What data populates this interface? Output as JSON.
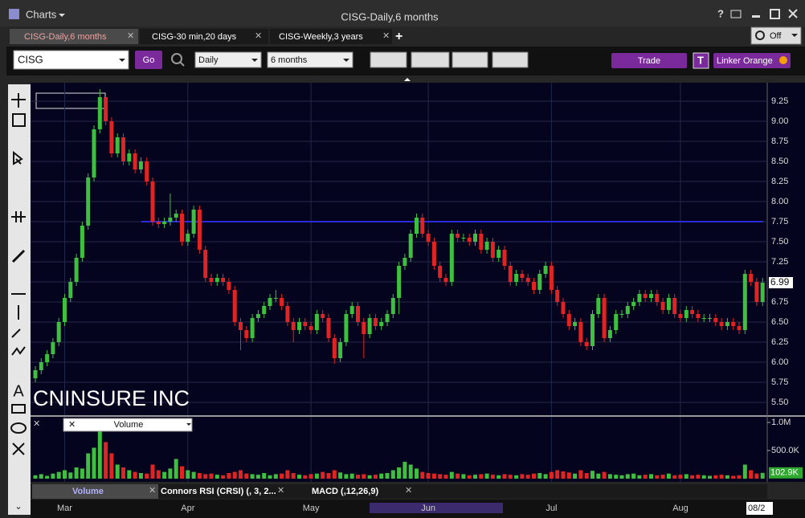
{
  "window": {
    "app_menu": "Charts",
    "title": "CISG-Daily,6 months",
    "tabs": [
      "CISG-Daily,6 months",
      "CISG-30 min,20 days",
      "CISG-Weekly,3 years"
    ],
    "link_state": "Off",
    "symbol": "CISG",
    "go": "Go",
    "period": "Daily",
    "range": "6 months",
    "trade": "Trade",
    "t_button": "T",
    "linker": "Linker Orange",
    "study_tabs": [
      "Volume",
      "Connors RSI (CRSI) (, 3, 2...",
      "MACD (,12,26,9)"
    ],
    "date_box": "08/2"
  },
  "chart_data": {
    "type": "candlestick",
    "annotation": "CNINSURE INC",
    "categories": [
      null,
      null,
      null,
      null,
      null,
      "Mar",
      null,
      null,
      null,
      null,
      null,
      null,
      null,
      null,
      null,
      null,
      null,
      null,
      null,
      null,
      null,
      null,
      null,
      null,
      null,
      null,
      "Apr",
      null,
      null,
      null,
      null,
      null,
      null,
      null,
      null,
      null,
      null,
      null,
      null,
      null,
      null,
      null,
      null,
      null,
      null,
      null,
      null,
      "May",
      null,
      null,
      null,
      null,
      null,
      null,
      null,
      null,
      null,
      null,
      null,
      null,
      null,
      null,
      null,
      null,
      null,
      null,
      null,
      "Jun",
      null,
      null,
      null,
      null,
      null,
      null,
      null,
      null,
      null,
      null,
      null,
      null,
      null,
      null,
      null,
      null,
      null,
      null,
      null,
      null,
      "Jul",
      null,
      null,
      null,
      null,
      null,
      null,
      null,
      null,
      null,
      null,
      null,
      null,
      null,
      null,
      null,
      null,
      null,
      null,
      null,
      null,
      null,
      "Aug",
      null,
      null,
      null,
      null,
      null,
      null,
      null,
      null,
      null,
      null,
      null,
      null,
      null,
      null
    ],
    "open": [
      5.8,
      5.9,
      6.0,
      6.1,
      6.25,
      6.5,
      6.8,
      7.0,
      7.3,
      7.7,
      8.3,
      8.9,
      9.3,
      9.0,
      8.6,
      8.8,
      8.5,
      8.6,
      8.4,
      8.5,
      8.25,
      7.75,
      7.72,
      7.75,
      7.8,
      7.85,
      7.5,
      7.6,
      7.9,
      7.4,
      7.05,
      7.0,
      7.05,
      7.0,
      6.9,
      6.5,
      6.4,
      6.3,
      6.55,
      6.6,
      6.7,
      6.8,
      6.8,
      6.7,
      6.5,
      6.4,
      6.5,
      6.45,
      6.4,
      6.6,
      6.55,
      6.3,
      6.05,
      6.25,
      6.6,
      6.7,
      6.5,
      6.35,
      6.55,
      6.45,
      6.5,
      6.6,
      6.8,
      7.2,
      7.3,
      7.6,
      7.8,
      7.6,
      7.5,
      7.2,
      7.05,
      7.0,
      7.6,
      7.55,
      7.55,
      7.5,
      7.6,
      7.4,
      7.5,
      7.3,
      7.4,
      7.2,
      7.0,
      7.1,
      7.05,
      7.0,
      6.9,
      7.1,
      7.2,
      6.9,
      6.75,
      6.6,
      6.45,
      6.5,
      6.25,
      6.2,
      6.6,
      6.8,
      6.3,
      6.4,
      6.6,
      6.6,
      6.7,
      6.75,
      6.85,
      6.8,
      6.85,
      6.75,
      6.65,
      6.8,
      6.6,
      6.55,
      6.65,
      6.6,
      6.55,
      6.55,
      6.55,
      6.5,
      6.45,
      6.5,
      6.45,
      6.4,
      7.1,
      7.0,
      6.75
    ],
    "high": [
      5.95,
      6.05,
      6.15,
      6.3,
      6.55,
      6.85,
      7.05,
      7.35,
      7.75,
      8.35,
      8.95,
      9.4,
      9.35,
      9.05,
      8.85,
      8.85,
      8.65,
      8.65,
      8.55,
      8.55,
      8.3,
      7.8,
      7.8,
      8.1,
      7.9,
      7.9,
      7.65,
      7.95,
      7.95,
      7.45,
      7.1,
      7.1,
      7.1,
      7.05,
      6.95,
      6.55,
      6.45,
      6.6,
      6.65,
      6.75,
      6.85,
      6.9,
      6.85,
      6.75,
      6.55,
      6.55,
      6.55,
      6.5,
      6.65,
      6.65,
      6.6,
      6.35,
      6.3,
      6.65,
      6.75,
      6.75,
      6.55,
      6.6,
      6.6,
      6.55,
      6.65,
      6.85,
      7.25,
      7.35,
      7.65,
      7.85,
      7.85,
      7.65,
      7.55,
      7.25,
      7.1,
      7.65,
      7.65,
      7.6,
      7.6,
      7.65,
      7.65,
      7.55,
      7.55,
      7.45,
      7.45,
      7.25,
      7.15,
      7.15,
      7.1,
      7.05,
      7.15,
      7.25,
      7.25,
      6.95,
      6.8,
      6.65,
      6.55,
      6.55,
      6.3,
      6.65,
      6.85,
      6.85,
      6.45,
      6.65,
      6.65,
      6.75,
      6.8,
      6.9,
      6.9,
      6.9,
      6.9,
      6.8,
      6.85,
      6.85,
      6.65,
      6.7,
      6.7,
      6.65,
      6.6,
      6.6,
      6.6,
      6.55,
      6.55,
      6.55,
      6.5,
      7.15,
      7.15,
      7.05,
      7.05
    ],
    "low": [
      5.75,
      5.85,
      5.95,
      6.05,
      6.2,
      6.45,
      6.75,
      6.95,
      7.25,
      7.65,
      8.25,
      8.85,
      8.95,
      8.55,
      8.55,
      8.45,
      8.45,
      8.35,
      8.35,
      8.2,
      7.7,
      7.67,
      7.67,
      7.7,
      7.75,
      7.45,
      7.45,
      7.55,
      7.35,
      7.0,
      6.95,
      6.95,
      6.95,
      6.85,
      6.45,
      6.15,
      6.25,
      6.25,
      6.5,
      6.55,
      6.65,
      6.75,
      6.65,
      6.45,
      6.25,
      6.35,
      6.4,
      6.35,
      6.35,
      6.5,
      6.25,
      5.98,
      6.0,
      6.2,
      6.55,
      6.45,
      6.05,
      6.3,
      6.4,
      6.4,
      6.45,
      6.55,
      6.6,
      7.15,
      7.25,
      7.55,
      7.55,
      7.45,
      7.15,
      7.0,
      6.95,
      6.95,
      7.5,
      7.5,
      7.45,
      7.45,
      7.35,
      7.35,
      7.25,
      7.25,
      7.15,
      6.95,
      6.95,
      7.0,
      6.95,
      6.85,
      6.85,
      7.05,
      6.85,
      6.7,
      6.55,
      6.4,
      6.4,
      6.2,
      6.15,
      6.15,
      6.55,
      6.25,
      6.25,
      6.35,
      6.55,
      6.55,
      6.65,
      6.7,
      6.75,
      6.75,
      6.7,
      6.6,
      6.6,
      6.55,
      6.5,
      6.5,
      6.55,
      6.5,
      6.5,
      6.5,
      6.45,
      6.4,
      6.4,
      6.4,
      6.35,
      6.35,
      6.95,
      6.7,
      6.7
    ],
    "close": [
      5.9,
      6.0,
      6.1,
      6.25,
      6.5,
      6.8,
      7.0,
      7.3,
      7.7,
      8.3,
      8.9,
      9.3,
      9.0,
      8.6,
      8.8,
      8.5,
      8.6,
      8.4,
      8.5,
      8.25,
      7.75,
      7.72,
      7.75,
      7.8,
      7.85,
      7.5,
      7.6,
      7.9,
      7.4,
      7.05,
      7.0,
      7.05,
      7.0,
      6.9,
      6.5,
      6.4,
      6.3,
      6.55,
      6.6,
      6.7,
      6.8,
      6.8,
      6.7,
      6.5,
      6.4,
      6.5,
      6.45,
      6.4,
      6.6,
      6.55,
      6.3,
      6.05,
      6.25,
      6.6,
      6.7,
      6.5,
      6.35,
      6.55,
      6.45,
      6.5,
      6.6,
      6.8,
      7.2,
      7.3,
      7.6,
      7.8,
      7.6,
      7.5,
      7.2,
      7.05,
      7.0,
      7.6,
      7.55,
      7.55,
      7.5,
      7.6,
      7.4,
      7.5,
      7.3,
      7.4,
      7.2,
      7.0,
      7.1,
      7.05,
      7.0,
      6.9,
      7.1,
      7.2,
      6.9,
      6.75,
      6.6,
      6.45,
      6.5,
      6.25,
      6.2,
      6.6,
      6.8,
      6.3,
      6.4,
      6.6,
      6.6,
      6.7,
      6.75,
      6.85,
      6.8,
      6.85,
      6.75,
      6.65,
      6.8,
      6.6,
      6.55,
      6.65,
      6.6,
      6.55,
      6.55,
      6.55,
      6.5,
      6.45,
      6.5,
      6.45,
      6.4,
      7.1,
      7.0,
      6.75,
      6.99
    ],
    "up_color": "#3fbf3f",
    "down_color": "#e02424",
    "hline": 7.75,
    "hline_color": "#2b2bdc",
    "grid": true,
    "ylim": [
      5.36,
      9.46
    ],
    "yticks": [
      {
        "value": 5.5,
        "label": "5.50"
      },
      {
        "value": 5.75,
        "label": "5.75"
      },
      {
        "value": 6,
        "label": "6.00"
      },
      {
        "value": 6.25,
        "label": "6.25"
      },
      {
        "value": 6.5,
        "label": "6.50"
      },
      {
        "value": 6.75,
        "label": "6.75"
      },
      {
        "value": 7,
        "label": "7.00"
      },
      {
        "value": 7.25,
        "label": "7.25"
      },
      {
        "value": 7.5,
        "label": "7.50"
      },
      {
        "value": 7.75,
        "label": "7.75"
      },
      {
        "value": 8,
        "label": "8.00"
      },
      {
        "value": 8.25,
        "label": "8.25"
      },
      {
        "value": 8.5,
        "label": "8.50"
      },
      {
        "value": 8.75,
        "label": "8.75"
      },
      {
        "value": 9,
        "label": "9.00"
      },
      {
        "value": 9.25,
        "label": "9.25"
      }
    ],
    "volume": {
      "name": "Volume",
      "values": [
        60000,
        80000,
        50000,
        90000,
        120000,
        150000,
        110000,
        200000,
        180000,
        450000,
        550000,
        850000,
        650000,
        450000,
        250000,
        200000,
        150000,
        120000,
        100000,
        90000,
        250000,
        150000,
        120000,
        180000,
        350000,
        220000,
        150000,
        120000,
        100000,
        80000,
        90000,
        70000,
        60000,
        100000,
        120000,
        150000,
        90000,
        80000,
        70000,
        100000,
        60000,
        80000,
        90000,
        150000,
        100000,
        70000,
        60000,
        80000,
        90000,
        120000,
        100000,
        150000,
        110000,
        80000,
        90000,
        70000,
        80000,
        60000,
        70000,
        90000,
        100000,
        150000,
        200000,
        300000,
        250000,
        180000,
        120000,
        100000,
        90000,
        80000,
        70000,
        120000,
        90000,
        80000,
        60000,
        70000,
        80000,
        90000,
        70000,
        60000,
        80000,
        70000,
        60000,
        80000,
        70000,
        90000,
        100000,
        80000,
        120000,
        150000,
        130000,
        110000,
        90000,
        150000,
        100000,
        140000,
        90000,
        120000,
        80000,
        70000,
        60000,
        80000,
        90000,
        60000,
        70000,
        80000,
        60000,
        70000,
        90000,
        60000,
        70000,
        80000,
        60000,
        70000,
        60000,
        50000,
        60000,
        70000,
        60000,
        50000,
        60000,
        250000,
        150000,
        90000,
        102900
      ],
      "value_labels": [
        null,
        null,
        null,
        null,
        null,
        null,
        null,
        null,
        null,
        null,
        null,
        null,
        null,
        null,
        null,
        null,
        null,
        null,
        null,
        null,
        null,
        null,
        null,
        null,
        null,
        null,
        null,
        null,
        null,
        null,
        null,
        null,
        null,
        null,
        null,
        null,
        null,
        null,
        null,
        null,
        null,
        null,
        null,
        null,
        null,
        null,
        null,
        null,
        null,
        null,
        null,
        null,
        null,
        null,
        null,
        null,
        null,
        null,
        null,
        null,
        null,
        null,
        null,
        null,
        null,
        null,
        null,
        null,
        null,
        null,
        null,
        null,
        null,
        null,
        null,
        null,
        null,
        null,
        null,
        null,
        null,
        null,
        null,
        null,
        null,
        null,
        null,
        null,
        null,
        null,
        null,
        null,
        null,
        null,
        null,
        null,
        null,
        null,
        null,
        null,
        null,
        null,
        null,
        null,
        null,
        null,
        null,
        null,
        null,
        null,
        null,
        null,
        null,
        null,
        null,
        null,
        null,
        null,
        null,
        null,
        null,
        null,
        null,
        null,
        "102.9K"
      ],
      "ylim": [
        0,
        1100000
      ],
      "yticks": [
        {
          "value": 500000,
          "label": "500.0K"
        },
        {
          "value": 1000000,
          "label": "1.0M"
        }
      ]
    }
  }
}
